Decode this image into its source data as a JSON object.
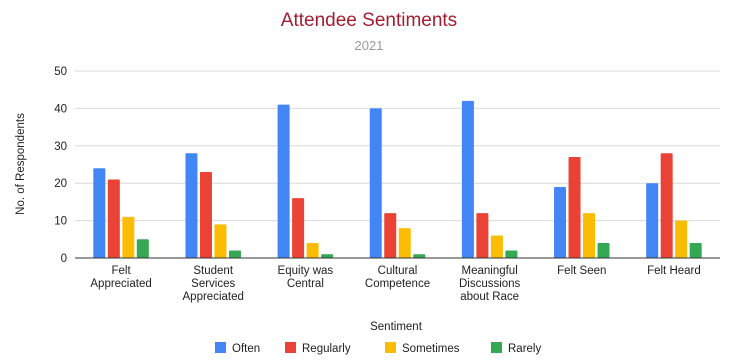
{
  "chart_data": {
    "type": "bar",
    "title": "Attendee Sentiments",
    "subtitle": "2021",
    "xlabel": "Sentiment",
    "ylabel": "No. of Respondents",
    "ylim": [
      0,
      50
    ],
    "yticks": [
      0,
      10,
      20,
      30,
      40,
      50
    ],
    "grid": true,
    "legend_position": "bottom",
    "categories": [
      [
        "Felt",
        "Appreciated"
      ],
      [
        "Student",
        "Services",
        "Appreciated"
      ],
      [
        "Equity was",
        "Central"
      ],
      [
        "Cultural",
        "Competence"
      ],
      [
        "Meaningful",
        "Discussions",
        "about Race"
      ],
      [
        "Felt Seen"
      ],
      [
        "Felt Heard"
      ]
    ],
    "series": [
      {
        "name": "Often",
        "color": "#4285f4",
        "values": [
          24,
          28,
          41,
          40,
          42,
          19,
          20
        ]
      },
      {
        "name": "Regularly",
        "color": "#ea4335",
        "values": [
          21,
          23,
          16,
          12,
          12,
          27,
          28
        ]
      },
      {
        "name": "Sometimes",
        "color": "#fbbc04",
        "values": [
          11,
          9,
          4,
          8,
          6,
          12,
          10
        ]
      },
      {
        "name": "Rarely",
        "color": "#34a853",
        "values": [
          5,
          2,
          1,
          1,
          2,
          4,
          4
        ]
      }
    ],
    "colors": {
      "title": "#a31d32",
      "grid": "#d9d9d9",
      "axis": "#333333"
    }
  }
}
